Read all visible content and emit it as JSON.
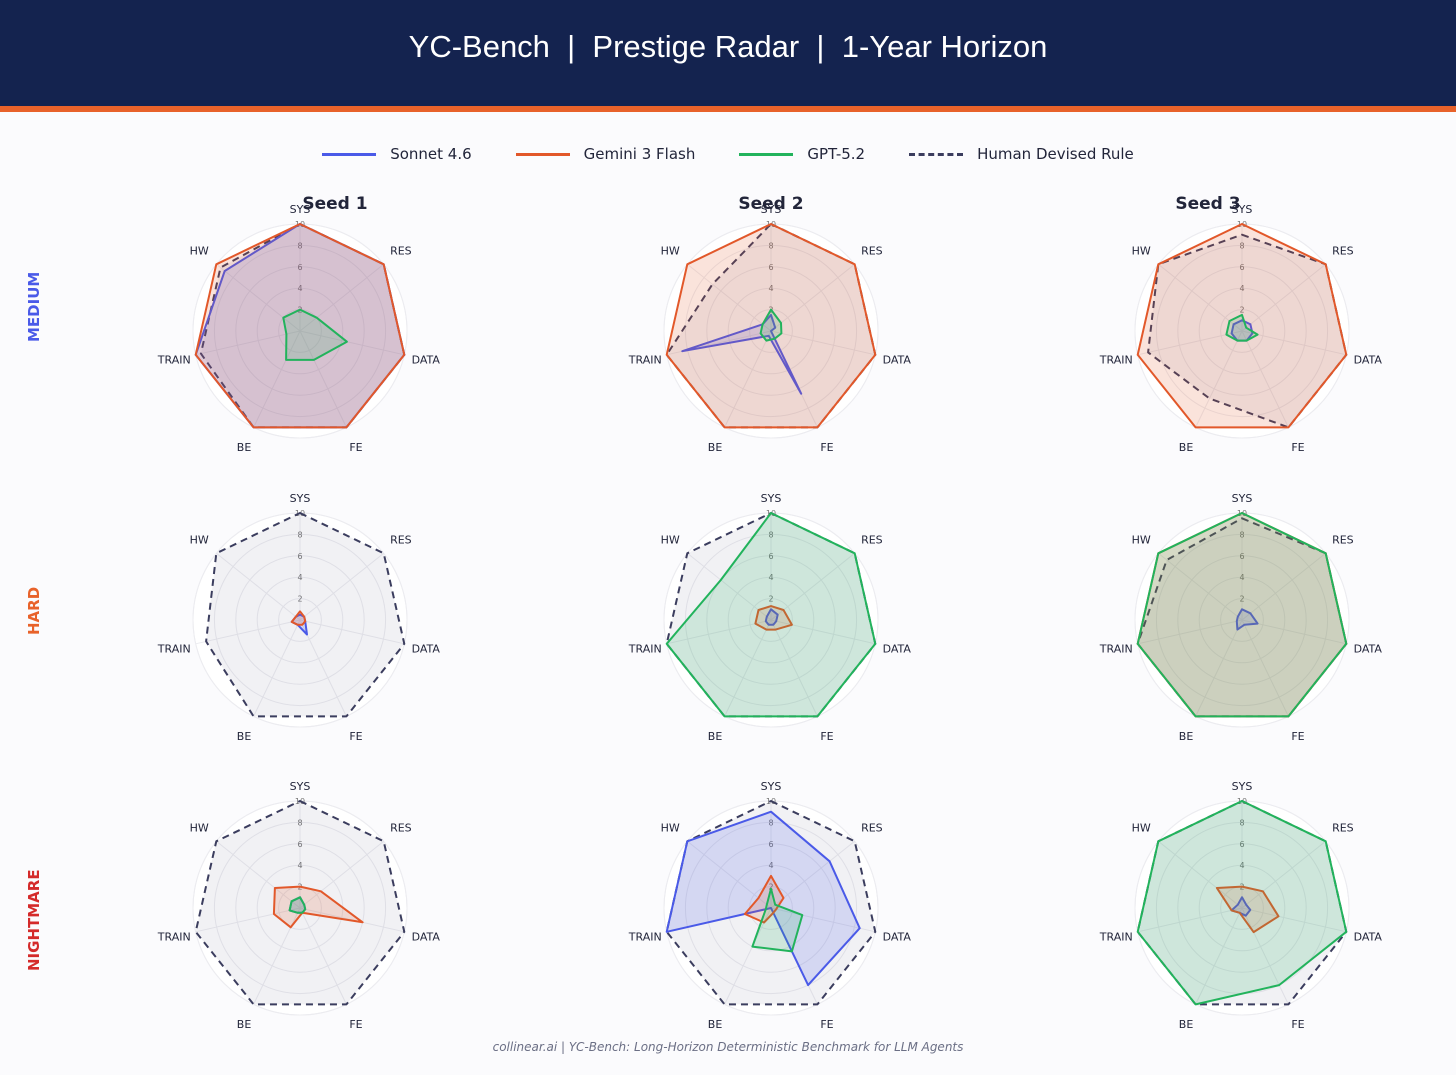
{
  "title": "YC-Bench  |  Prestige Radar  |  1-Year Horizon",
  "legend": [
    {
      "name": "Sonnet 4.6",
      "color": "#4a5ae8",
      "dashed": false
    },
    {
      "name": "Gemini 3 Flash",
      "color": "#e2582a",
      "dashed": false
    },
    {
      "name": "GPT-5.2",
      "color": "#22b35c",
      "dashed": false
    },
    {
      "name": "Human Devised Rule",
      "color": "#3b3d5e",
      "dashed": true
    }
  ],
  "columns": [
    "Seed 1",
    "Seed 2",
    "Seed 3"
  ],
  "rows": [
    {
      "label": "MEDIUM",
      "color": "#4a5ae8"
    },
    {
      "label": "HARD",
      "color": "#e8622a"
    },
    {
      "label": "NIGHTMARE",
      "color": "#d42a2a"
    }
  ],
  "footer": "collinear.ai  |  YC-Bench: Long-Horizon Deterministic Benchmark for LLM Agents",
  "chart_data": {
    "type": "radar",
    "axes": [
      "SYS",
      "RES",
      "DATA",
      "FE",
      "BE",
      "TRAIN",
      "HW"
    ],
    "r_ticks": [
      "2",
      "4",
      "6",
      "8",
      "10"
    ],
    "r_range": [
      0,
      10
    ],
    "series_order": [
      "Human Devised Rule",
      "Sonnet 4.6",
      "Gemini 3 Flash",
      "GPT-5.2"
    ],
    "panels": [
      {
        "row": "MEDIUM",
        "seed": "Seed 1",
        "series": {
          "Human Devised Rule": [
            10,
            10,
            10,
            10,
            10,
            9.5,
            9.5
          ],
          "Sonnet 4.6": [
            10,
            10,
            10,
            10,
            10,
            10,
            9
          ],
          "Gemini 3 Flash": [
            10,
            10,
            10,
            10,
            10,
            10,
            10
          ],
          "GPT-5.2": [
            2,
            2,
            4.5,
            3,
            3,
            1.3,
            2
          ]
        }
      },
      {
        "row": "MEDIUM",
        "seed": "Seed 2",
        "series": {
          "Human Devised Rule": [
            10,
            10,
            10,
            10,
            10,
            10,
            7
          ],
          "Sonnet 4.6": [
            1.5,
            0.5,
            0,
            6.5,
            0.5,
            8.5,
            1
          ],
          "Gemini 3 Flash": [
            10,
            10,
            10,
            10,
            10,
            10,
            10
          ],
          "GPT-5.2": [
            2,
            1.2,
            1,
            0.8,
            1,
            1,
            1
          ]
        }
      },
      {
        "row": "MEDIUM",
        "seed": "Seed 3",
        "series": {
          "Human Devised Rule": [
            9,
            10,
            10,
            10,
            7,
            9,
            10
          ],
          "Sonnet 4.6": [
            1,
            1,
            1,
            1,
            1,
            1,
            1
          ],
          "Gemini 3 Flash": [
            10,
            10,
            10,
            10,
            10,
            10,
            10
          ],
          "GPT-5.2": [
            1.5,
            0.5,
            1.5,
            1,
            1,
            1.5,
            1.5
          ]
        }
      },
      {
        "row": "HARD",
        "seed": "Seed 1",
        "series": {
          "Human Devised Rule": [
            10,
            10,
            10,
            10,
            10,
            9,
            10
          ],
          "Sonnet 4.6": [
            0.5,
            0.5,
            0.5,
            1.5,
            0.5,
            0.8,
            0.5
          ],
          "Gemini 3 Flash": [
            0.8,
            0.5,
            0.5,
            0.5,
            0.5,
            0.8,
            0.5
          ],
          "GPT-5.2": [
            0,
            0,
            0,
            0,
            0,
            0,
            0
          ]
        }
      },
      {
        "row": "HARD",
        "seed": "Seed 2",
        "series": {
          "Human Devised Rule": [
            10,
            10,
            10,
            10,
            10,
            10,
            10
          ],
          "Sonnet 4.6": [
            1,
            0.8,
            0.5,
            0.5,
            0.5,
            0.5,
            0.5
          ],
          "Gemini 3 Flash": [
            1.3,
            1.5,
            2,
            1,
            1,
            1.5,
            1.5
          ],
          "GPT-5.2": [
            10,
            10,
            10,
            10,
            10,
            10,
            6
          ]
        }
      },
      {
        "row": "HARD",
        "seed": "Seed 3",
        "series": {
          "Human Devised Rule": [
            9.5,
            10,
            10,
            10,
            10,
            10,
            9
          ],
          "Sonnet 4.6": [
            1,
            1,
            1.5,
            0.5,
            1,
            0.5,
            0.5
          ],
          "Gemini 3 Flash": [
            10,
            10,
            10,
            10,
            10,
            10,
            10
          ],
          "GPT-5.2": [
            10,
            10,
            10,
            10,
            10,
            10,
            10
          ]
        }
      },
      {
        "row": "NIGHTMARE",
        "seed": "Seed 3",
        "series": {
          "Human Devised Rule": [
            10,
            10,
            10,
            10,
            10,
            10,
            10
          ],
          "Sonnet 4.6": [
            1,
            0.5,
            0.8,
            0.8,
            0.5,
            1,
            0.5
          ],
          "Gemini 3 Flash": [
            2,
            2.5,
            3.5,
            2.5,
            0.5,
            1,
            3
          ],
          "GPT-5.2": [
            10,
            10,
            10,
            8,
            10,
            10,
            10
          ]
        }
      },
      {
        "row": "NIGHTMARE",
        "seed": "Seed 1",
        "series": {
          "Human Devised Rule": [
            10,
            10,
            10,
            10,
            10,
            10,
            10
          ],
          "Sonnet 4.6": [
            1,
            0.5,
            0.5,
            0.5,
            0.5,
            1,
            1
          ],
          "Gemini 3 Flash": [
            2,
            2.5,
            6,
            0.5,
            2,
            2.5,
            3
          ],
          "GPT-5.2": [
            1,
            0.5,
            0.5,
            0.5,
            0.5,
            1,
            1
          ]
        }
      },
      {
        "row": "NIGHTMARE",
        "seed": "Seed 2",
        "series": {
          "Human Devised Rule": [
            10,
            10,
            10,
            10,
            10,
            10,
            10
          ],
          "Sonnet 4.6": [
            9,
            7,
            8.5,
            8,
            0,
            10,
            10
          ],
          "Gemini 3 Flash": [
            3,
            1.5,
            0.5,
            0.5,
            1.5,
            2.5,
            1.5
          ],
          "GPT-5.2": [
            1.8,
            0.5,
            3,
            4.5,
            4,
            0.5,
            0.5
          ]
        }
      }
    ]
  }
}
